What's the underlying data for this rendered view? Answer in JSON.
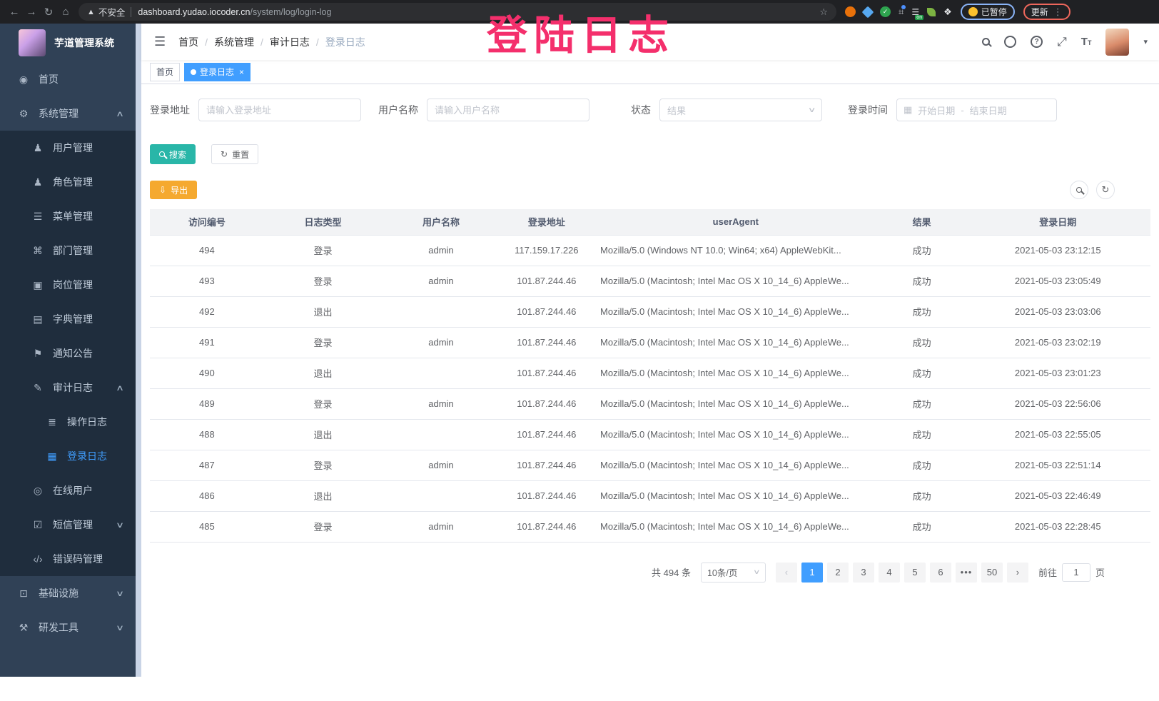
{
  "browser": {
    "security": "不安全",
    "url_domain": "dashboard.yudao.iocoder.cn",
    "url_path": "/system/log/login-log",
    "extension_badge": "on",
    "profile_label": "已暂停",
    "update_label": "更新"
  },
  "watermark": "登陆日志",
  "sidebar": {
    "title": "芋道管理系统",
    "items": [
      {
        "key": "home",
        "label": "首页",
        "icon": "dashboard-icon",
        "level": 0,
        "sub": false
      },
      {
        "key": "system",
        "label": "系统管理",
        "icon": "gear-icon",
        "level": 0,
        "sub": false,
        "arrow": "up"
      },
      {
        "key": "user",
        "label": "用户管理",
        "icon": "user-icon",
        "level": 1,
        "sub": true
      },
      {
        "key": "role",
        "label": "角色管理",
        "icon": "role-icon",
        "level": 1,
        "sub": true
      },
      {
        "key": "menu",
        "label": "菜单管理",
        "icon": "menu-list-icon",
        "level": 1,
        "sub": true
      },
      {
        "key": "dept",
        "label": "部门管理",
        "icon": "org-icon",
        "level": 1,
        "sub": true
      },
      {
        "key": "post",
        "label": "岗位管理",
        "icon": "badge-icon",
        "level": 1,
        "sub": true
      },
      {
        "key": "dict",
        "label": "字典管理",
        "icon": "dict-icon",
        "level": 1,
        "sub": true
      },
      {
        "key": "notice",
        "label": "通知公告",
        "icon": "announcement-icon",
        "level": 1,
        "sub": true
      },
      {
        "key": "audit",
        "label": "审计日志",
        "icon": "edit-log-icon",
        "level": 1,
        "sub": true,
        "arrow": "up"
      },
      {
        "key": "op-log",
        "label": "操作日志",
        "icon": "operation-log-icon",
        "level": 2,
        "sub": true
      },
      {
        "key": "login-log",
        "label": "登录日志",
        "icon": "login-log-icon",
        "level": 2,
        "sub": true,
        "active": true
      },
      {
        "key": "online",
        "label": "在线用户",
        "icon": "online-user-icon",
        "level": 1,
        "sub": true
      },
      {
        "key": "sms",
        "label": "短信管理",
        "icon": "sms-icon",
        "level": 1,
        "sub": true,
        "arrow": "down"
      },
      {
        "key": "errcode",
        "label": "错误码管理",
        "icon": "code-icon",
        "level": 1,
        "sub": true
      },
      {
        "key": "infra",
        "label": "基础设施",
        "icon": "monitor-icon",
        "level": 0,
        "sub": false,
        "arrow": "down"
      },
      {
        "key": "devtool",
        "label": "研发工具",
        "icon": "tools-icon",
        "level": 0,
        "sub": false,
        "arrow": "down"
      }
    ]
  },
  "header": {
    "breadcrumb": [
      "首页",
      "系统管理",
      "审计日志",
      "登录日志"
    ]
  },
  "tabs": [
    {
      "label": "首页",
      "active": false
    },
    {
      "label": "登录日志",
      "active": true
    }
  ],
  "filters": {
    "address_label": "登录地址",
    "address_placeholder": "请输入登录地址",
    "username_label": "用户名称",
    "username_placeholder": "请输入用户名称",
    "status_label": "状态",
    "status_placeholder": "结果",
    "time_label": "登录时间",
    "start_placeholder": "开始日期",
    "range_separator": "-",
    "end_placeholder": "结束日期",
    "search_label": "搜索",
    "reset_label": "重置",
    "export_label": "导出"
  },
  "table": {
    "columns": [
      "访问编号",
      "日志类型",
      "用户名称",
      "登录地址",
      "userAgent",
      "结果",
      "登录日期"
    ],
    "rows": [
      {
        "id": "494",
        "type": "登录",
        "user": "admin",
        "ip": "117.159.17.226",
        "ua": "Mozilla/5.0 (Windows NT 10.0; Win64; x64) AppleWebKit...",
        "result": "成功",
        "date": "2021-05-03 23:12:15"
      },
      {
        "id": "493",
        "type": "登录",
        "user": "admin",
        "ip": "101.87.244.46",
        "ua": "Mozilla/5.0 (Macintosh; Intel Mac OS X 10_14_6) AppleWe...",
        "result": "成功",
        "date": "2021-05-03 23:05:49"
      },
      {
        "id": "492",
        "type": "退出",
        "user": "",
        "ip": "101.87.244.46",
        "ua": "Mozilla/5.0 (Macintosh; Intel Mac OS X 10_14_6) AppleWe...",
        "result": "成功",
        "date": "2021-05-03 23:03:06"
      },
      {
        "id": "491",
        "type": "登录",
        "user": "admin",
        "ip": "101.87.244.46",
        "ua": "Mozilla/5.0 (Macintosh; Intel Mac OS X 10_14_6) AppleWe...",
        "result": "成功",
        "date": "2021-05-03 23:02:19"
      },
      {
        "id": "490",
        "type": "退出",
        "user": "",
        "ip": "101.87.244.46",
        "ua": "Mozilla/5.0 (Macintosh; Intel Mac OS X 10_14_6) AppleWe...",
        "result": "成功",
        "date": "2021-05-03 23:01:23"
      },
      {
        "id": "489",
        "type": "登录",
        "user": "admin",
        "ip": "101.87.244.46",
        "ua": "Mozilla/5.0 (Macintosh; Intel Mac OS X 10_14_6) AppleWe...",
        "result": "成功",
        "date": "2021-05-03 22:56:06"
      },
      {
        "id": "488",
        "type": "退出",
        "user": "",
        "ip": "101.87.244.46",
        "ua": "Mozilla/5.0 (Macintosh; Intel Mac OS X 10_14_6) AppleWe...",
        "result": "成功",
        "date": "2021-05-03 22:55:05"
      },
      {
        "id": "487",
        "type": "登录",
        "user": "admin",
        "ip": "101.87.244.46",
        "ua": "Mozilla/5.0 (Macintosh; Intel Mac OS X 10_14_6) AppleWe...",
        "result": "成功",
        "date": "2021-05-03 22:51:14"
      },
      {
        "id": "486",
        "type": "退出",
        "user": "",
        "ip": "101.87.244.46",
        "ua": "Mozilla/5.0 (Macintosh; Intel Mac OS X 10_14_6) AppleWe...",
        "result": "成功",
        "date": "2021-05-03 22:46:49"
      },
      {
        "id": "485",
        "type": "登录",
        "user": "admin",
        "ip": "101.87.244.46",
        "ua": "Mozilla/5.0 (Macintosh; Intel Mac OS X 10_14_6) AppleWe...",
        "result": "成功",
        "date": "2021-05-03 22:28:45"
      }
    ]
  },
  "pagination": {
    "total_text": "共 494 条",
    "page_size": "10条/页",
    "pages": [
      {
        "label": "‹",
        "kind": "prev"
      },
      {
        "label": "1",
        "kind": "page",
        "active": true
      },
      {
        "label": "2",
        "kind": "page"
      },
      {
        "label": "3",
        "kind": "page"
      },
      {
        "label": "4",
        "kind": "page"
      },
      {
        "label": "5",
        "kind": "page"
      },
      {
        "label": "6",
        "kind": "page"
      },
      {
        "label": "•••",
        "kind": "more"
      },
      {
        "label": "50",
        "kind": "page"
      },
      {
        "label": "›",
        "kind": "next"
      }
    ],
    "goto_label": "前往",
    "goto_value": "1",
    "page_unit": "页"
  },
  "colors": {
    "accent_blue": "#409eff",
    "search_teal": "#29b6a8",
    "export_orange": "#f5a92f",
    "watermark_pink": "#f42f6c",
    "sidebar_bg": "#304156",
    "submenu_bg": "#1f2d3d"
  }
}
